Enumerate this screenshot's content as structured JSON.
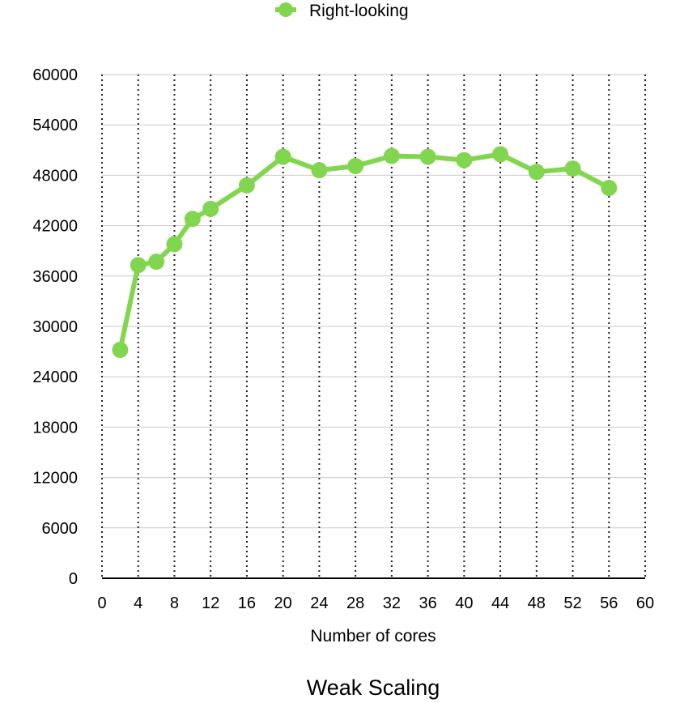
{
  "chart_data": {
    "type": "line",
    "title": "Weak Scaling",
    "xlabel": "Number of cores",
    "ylabel": "",
    "xlim": [
      0,
      60
    ],
    "ylim": [
      0,
      60000
    ],
    "x_ticks": [
      0,
      4,
      8,
      12,
      16,
      20,
      24,
      28,
      32,
      36,
      40,
      44,
      48,
      52,
      56,
      60
    ],
    "y_ticks": [
      0,
      6000,
      12000,
      18000,
      24000,
      30000,
      36000,
      42000,
      48000,
      54000,
      60000
    ],
    "grid": {
      "horizontal": "solid",
      "vertical": "dotted"
    },
    "legend_position": "top-center",
    "series": [
      {
        "name": "Right-looking",
        "color": "#82d64f",
        "x": [
          2,
          4,
          6,
          8,
          10,
          12,
          16,
          20,
          24,
          28,
          32,
          36,
          40,
          44,
          48,
          52,
          56
        ],
        "y": [
          27200,
          37300,
          37700,
          39800,
          42800,
          44000,
          46800,
          50200,
          48600,
          49100,
          50300,
          50200,
          49800,
          50500,
          48400,
          48800,
          46500
        ]
      }
    ]
  }
}
